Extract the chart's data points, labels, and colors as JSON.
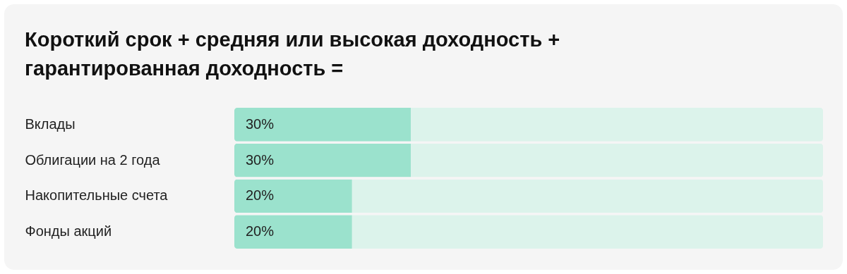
{
  "chart_data": {
    "type": "bar",
    "orientation": "horizontal",
    "stacked": true,
    "title": "Короткий срок + средняя или высокая доходность + гарантированная доходность =",
    "categories": [
      "Вклады",
      "Облигации на 2 года",
      "Накопительные счета",
      "Фонды акций"
    ],
    "series": [
      {
        "color": "#9be2cd",
        "values": [
          30,
          30,
          20,
          20
        ],
        "value_labels": [
          "30%",
          "30%",
          "20%",
          "20%"
        ]
      },
      {
        "color": "#dcf3eb",
        "values": [
          70,
          70,
          80,
          80
        ]
      }
    ],
    "xlim": [
      0,
      100
    ],
    "tick_labels": "y"
  }
}
